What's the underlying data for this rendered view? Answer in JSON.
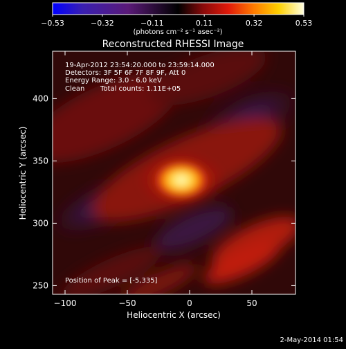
{
  "colorbar": {
    "ticks": [
      "-0.53",
      "-0.32",
      "-0.11",
      "0.11",
      "0.32",
      "0.53"
    ],
    "unit_label": "(photons cm⁻² s⁻¹ asec⁻²)",
    "range": [
      -0.53,
      0.53
    ],
    "colormap_stops": [
      "#0000ff",
      "#3a1fb0",
      "#5a1a78",
      "#000000",
      "#8a0a0a",
      "#e01a0a",
      "#ff7a00",
      "#ffd000",
      "#ffffe0"
    ]
  },
  "title": "Reconstructed RHESSI Image",
  "annotations": {
    "time_range": "19-Apr-2012 23:54:20.000 to 23:59:14.000",
    "detectors": "Detectors: 3F 5F 6F 7F 8F 9F, Att 0",
    "energy_range": "Energy Range: 3.0 - 6.0 keV",
    "method": "Clean",
    "total_counts": "Total counts: 1.11E+05",
    "peak_position": "Position of Peak = [-5,335]"
  },
  "footer_date": "2-May-2014 01:54",
  "chart_data": {
    "type": "heatmap",
    "title": "Reconstructed RHESSI Image",
    "xlabel": "Heliocentric X (arcsec)",
    "ylabel": "Heliocentric Y (arcsec)",
    "xlim": [
      -110,
      85
    ],
    "ylim": [
      243,
      438
    ],
    "x_ticks": [
      -100,
      -50,
      0,
      50
    ],
    "y_ticks": [
      250,
      300,
      350,
      400
    ],
    "x_tick_labels": [
      "−100",
      "−50",
      "0",
      "50"
    ],
    "y_tick_labels": [
      "250",
      "300",
      "350",
      "400"
    ],
    "peak": {
      "x": -5,
      "y": 335,
      "value": 0.53
    },
    "value_range": [
      -0.53,
      0.53
    ]
  }
}
